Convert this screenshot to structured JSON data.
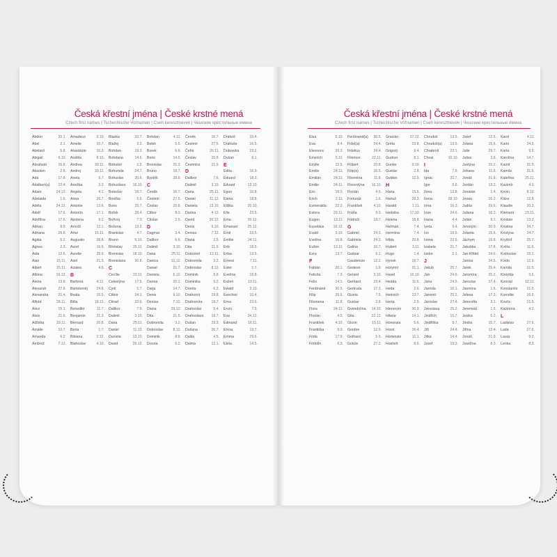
{
  "title": "Česká křestní jména | České krstné mená",
  "subtitle": "Czech first names | Tschechische Vornamen | Cseh keresztnevek | Чешские крестильные имена",
  "accent": "#c4144f",
  "left_columns": [
    [
      "Abdon|20.1.",
      "Abel|2.1.",
      "Abelard|5.8.",
      "Abigail|6.10.",
      "Abraham|16.8.",
      "Absolon|2.8.",
      "Ada|17.8.",
      "Adalbert(a)|23.4.",
      "Adam|24.12.",
      "Adelaida|1.6.",
      "Adéla|24.12.",
      "Adolf|17.6.",
      "Adolfína|17.6.",
      "Adrian|8.9.",
      "Adriana|26.8.",
      "Agáta|5.2.",
      "Agnes|2.3.",
      "Aida|12.6.",
      "Alan|15.11.",
      "Albert|15.11.",
      "Albína|16.12.",
      "Alena|13.8.",
      "Alexandr|27.8.",
      "Alexandra|21.4.",
      "Alfréd|28.11.",
      "Alice|15.1.",
      "Alois|21.6.",
      "Alžběta|19.11.",
      "Amálie|10.7.",
      "Amanda|6.2.",
      "Ambrož|7.12."
    ],
    [
      "Amadeus|3.10.",
      "Amelie|10.7.",
      "Anastázie|10.3.",
      "Anděla|8.10.",
      "Andrea|30.11.",
      "Andrej|30.11.",
      "Aneta|9.7.",
      "Anežka|2.3.",
      "Angela|4.1.",
      "Anna|26.7.",
      "Antonie|13.6.",
      "Antonín|17.1.",
      "Apolena|9.2.",
      "Arnošt|12.1.",
      "Artur|15.11.",
      "Augustin|28.8.",
      "Aurel|16.6.",
      "Aurelie|25.9.",
      "Axel|21.3.",
      "Azalea|4.5.",
      "#B",
      "Barbora|4.12.",
      "Bartoloměj|24.8.",
      "Beáta|10.5.",
      "Běla|18.11.",
      "Benedikt|11.7.",
      "Benjamin|31.3.",
      "Bernard|20.8.",
      "Berta|1.7.",
      "Bibiana|2.12.",
      "Blahoslav|4.10."
    ],
    [
      "Blanka|10.7.",
      "Blažej|3.2.",
      "Bohdan|19.3.",
      "Bohdana|14.6.",
      "Bohumil|1.2.",
      "Bohumila|24.7.",
      "Bohuslav|30.6.",
      "Bohuslava|16.10.",
      "Boleslav|18.7.",
      "Bonifác|5.6.",
      "Boris|25.7.",
      "Bořek|28.4.",
      "Bořivoj|7.3.",
      "Božena|13.2.",
      "Branislav|4.7.",
      "Bruno|6.10.",
      "Břetislav|25.11.",
      "Bronislav|18.10.",
      "Bronislava|30.8.",
      "#C",
      "Cecílie|22.11.",
      "Celestýna|17.5.",
      "Cyril|5.7.",
      "Ctibor|24.1.",
      "Ctirad|22.6.",
      "Dalibor|7.6.",
      "Dalimil|3.10.",
      "Dana|25.11.",
      "Daniel|11.12.",
      "Daniela|13.10.",
      "David|26.12."
    ],
    [
      "Bohdan|4.11.",
      "Bolek|5.5.",
      "Borek|6.6.",
      "Boris|14.5.",
      "Bronislav|21.3.",
      "Bruno|18.7.",
      "Bystrík|28.9.",
      "#C",
      "Čeněk|16.7.",
      "Čestmír|27.5.",
      "Česlav|20.8.",
      "Ctibor|8.3.",
      "Ctislav|2.5.",
      "#D",
      "Dagmar|3.4.",
      "Dalibor|6.6.",
      "Dalimil|3.10.",
      "Dana|25.11.",
      "Danica|11.12.",
      "Daniel|21.7.",
      "Daniela|6.12.",
      "Darina|20.1.",
      "Darja|14.7.",
      "Denis|9.10.",
      "Denisa|7.12.",
      "Diana|29.12.",
      "Dita|21.5.",
      "Dobromila|3.2.",
      "Dobroslav|8.12.",
      "Dominik|8.8.",
      "Dorota|6.2."
    ],
    [
      "Čeněk|16.7.",
      "Čestmír|27.5.",
      "Čeňa|26.11.",
      "Česlav|20.8.",
      "Čestmíra|21.9.",
      "#D",
      "Dalibor|7.6.",
      "Dalimil|3.10.",
      "Dana|25.11.",
      "Daniel|11.12.",
      "Daniela|13.10.",
      "Darina|4.12.",
      "David|26.12.",
      "Denis|9.10.",
      "Denisa|7.12.",
      "Diana|2.5.",
      "Dita|21.5.",
      "Dobromil|13.11.",
      "Dobromila|3.2.",
      "Dobroslav|8.12.",
      "Dominik|8.8.",
      "Dominika|5.2.",
      "Dorota|6.2.",
      "Drahomír|19.8.",
      "Drahomíra|18.7.",
      "Drahoslav|5.4.",
      "Drahoslava|19.7.",
      "Dušan|29.3.",
      "Dušana|26.7.",
      "Dalila|4.5.",
      "Dalma|12.1."
    ],
    [
      "Drahoš|15.4.",
      "Drahuše|16.5.",
      "Dubravka|23.2.",
      "Dušan|9.1.",
      "#E",
      "Edita|16.9.",
      "Eduard|18.3.",
      "Edvard|13.10.",
      "Egon|10.8.",
      "Elena|18.8.",
      "Eliška|20.10.",
      "Ella|23.5.",
      "Ema|20.12.",
      "Emanuel|25.12.",
      "Emil|22.5.",
      "Emílie|24.11.",
      "Erik|18.5.",
      "Erika|13.5.",
      "Ernest|7.11.",
      "Ester|1.7.",
      "Evelína|16.8.",
      "Evžen|13.11.",
      "Ewald|3.10.",
      "Ezechiel|10.4.",
      "Erna|23.6.",
      "Ervín|7.9.",
      "Eva|24.12.",
      "Edmund|16.11.",
      "Elvíra|19.7.",
      "Emma|29.6.",
      "Etela|14.5."
    ]
  ],
  "right_columns": [
    [
      "Elsa|5.10.",
      "Eva|8.4.",
      "Eleonora|26.3.",
      "Emerich|5.11.",
      "Emílie|22.5.",
      "Emílie|24.11.",
      "Emilián|24.11.",
      "Emilie|24.11.",
      "Eric|18.5.",
      "Erich|2.11.",
      "Esmeralda|22.2.",
      "Estera|29.11.",
      "Eugen|13.11.",
      "Eusebius|16.12.",
      "Evald|3.10.",
      "Evelína|16.8.",
      "Evžen|13.11.",
      "Ezra|13.7.",
      "#F",
      "Fabián|20.1.",
      "Felicita|7.3.",
      "Felix|14.1.",
      "Ferdinand|30.5.",
      "Filip|26.5.",
      "Filomena|11.8.",
      "Flora|24.11.",
      "Florián|4.5.",
      "František|4.10.",
      "Františka|9.3.",
      "Frida|17.9.",
      "Fridolín|6.3."
    ],
    [
      "Ferdinand(a)|30.5.",
      "Fidel(a)|24.4.",
      "Fidelius|24.4.",
      "Filemon|22.11.",
      "Filibert|20.8.",
      "Filip(a)|26.5.",
      "Filoména|11.8.",
      "Florentýna|16.10.",
      "Florián|4.5.",
      "Fortunát|1.6.",
      "František|4.10.",
      "Fráňa|9.3.",
      "Fridrich|18.7.",
      "#G",
      "Gabriel|24.3.",
      "Gabriela|24.3.",
      "Galina|10.7.",
      "Gašpar|6.1.",
      "Gaudencie|12.2.",
      "Gedeon|1.9.",
      "Gerard|3.10.",
      "Gerhard|23.4.",
      "Gertruda|17.3.",
      "Gizela|7.5.",
      "Gustav|2.8.",
      "Gvendolína|14.10.",
      "Gita|22.12.",
      "Glorie|15.11.",
      "Gordon|12.9.",
      "Gothard|5.5.",
      "Grácie|27.2."
    ],
    [
      "Gracián|17.12.",
      "Gréta|23.8.",
      "Grigorij|9.4.",
      "Gudrun|8.1.",
      "Gunter|9.10.",
      "Gustáv|2.8.",
      "Gvidon|12.9.",
      "#H",
      "Hana|15.5.",
      "Hanuš|28.3.",
      "Harald|1.11.",
      "Hedvika|17.10.",
      "Helena|18.8.",
      "Heřman|7.4.",
      "Hermína|7.4.",
      "Hilda|20.8.",
      "Hubert|3.11.",
      "Hugo|1.4.",
      "Hynek|16.7.",
      "Horymír|31.1.",
      "Havel|16.10.",
      "Hedda|11.6.",
      "Heda|2.6.",
      "Heinrich|13.7.",
      "Herta|2.5.",
      "Hieronym|30.9.",
      "Hilarie|14.1.",
      "Honorata|5.6.",
      "Horst|26.4.",
      "Hortenzie|11.1.",
      "Hostivít|8.6."
    ],
    [
      "Chrudoš|13.5.",
      "Chrudoš(a)|13.5.",
      "Chrabroš|23.1.",
      "Chval|10.10.",
      "#I",
      "Ida|7.8.",
      "Ignác|31.7.",
      "Igor|5.6.",
      "Ilona|12.8.",
      "Irena|28.10.",
      "Irma|16.3.",
      "Ivan|24.6.",
      "Ivana|4.4.",
      "Iveta|9.4.",
      "Ivo|19.5.",
      "Ivona|22.6.",
      "Izabela|21.7.",
      "Izidor|2.1.",
      "#J",
      "Jakub|25.7.",
      "Jan|24.6.",
      "Jana|24.5.",
      "Jarmila|10.1.",
      "Jaromír|25.2.",
      "Jaroslav|27.4.",
      "Jaroslava|25.2.",
      "Jindřich|15.7.",
      "Jindřiška|9.7.",
      "Jiří|24.4.",
      "Jitka|14.4.",
      "Josef|19.3."
    ],
    [
      "Jozef|12.5.",
      "Jolana|15.6.",
      "Julie|29.7.",
      "Julius|3.8.",
      "Justýna|25.2.",
      "Johana|11.5.",
      "Jonáš|21.9.",
      "Jordán|13.2.",
      "Jonatán|1.4.",
      "Jovan|16.2.",
      "Judita|29.6.",
      "Juliana|16.2.",
      "Julián|9.1.",
      "Jeroným|30.9.",
      "Jolanta|15.6.",
      "Jáchym|16.8.",
      "Jakubka|17.8.",
      "Jan Křtitel|24.6.",
      "Janina|24.5.",
      "Jarek|25.4.",
      "Jaromíra|25.2.",
      "Jaroslav|27.4.",
      "Jasmína|1.6.",
      "Jelena|17.3.",
      "Jenovéfa|3.1.",
      "Jeremiáš|1.5.",
      "Jesika|6.2.",
      "Jindra|15.7.",
      "Jiřina|12.4.",
      "Jonáš|21.9.",
      "Josefína|8.3."
    ],
    [
      "Karel|4.11.",
      "Karin|24.3.",
      "Karla|9.9.",
      "Karolína|14.7.",
      "Kamil|31.5.",
      "Kamila|31.5.",
      "Kateřina|25.11.",
      "Kazimír|4.3.",
      "Kevin|8.10.",
      "Klára|12.8.",
      "Klaudie|20.3.",
      "Klement|23.11.",
      "Kristián|13.3.",
      "Kristina|24.7.",
      "Kristýna|24.7.",
      "Kryštof|25.7.",
      "Květa|11.6.",
      "Květoslav|15.1.",
      "Kvido|12.9.",
      "Kamila|31.5.",
      "Klotylda|3.6.",
      "Konrád|12.11.",
      "Konstantin|21.5.",
      "Kornélie|16.9.",
      "Kosťa|21.5.",
      "Kazimíra|4.3.",
      "#L",
      "Ladislav|27.6.",
      "Lada|27.6.",
      "Laura|9.2.",
      "Lenka|8.3."
    ]
  ]
}
